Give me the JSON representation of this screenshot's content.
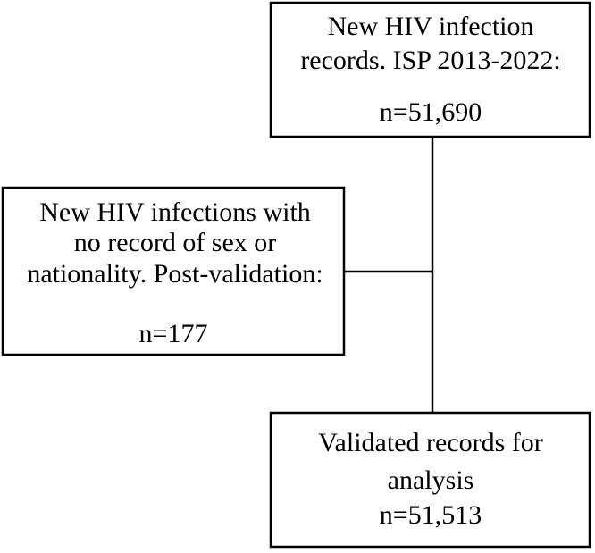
{
  "nodes": [
    {
      "lines": [
        "New HIV infection",
        "records. ISP 2013-2022:"
      ],
      "count": "n=51,690"
    },
    {
      "lines": [
        "New HIV infections with",
        "no record of sex or",
        "nationality. Post-validation:"
      ],
      "count": "n=177"
    },
    {
      "lines": [
        "Validated records for",
        "analysis"
      ],
      "count": "n=51,513"
    }
  ]
}
